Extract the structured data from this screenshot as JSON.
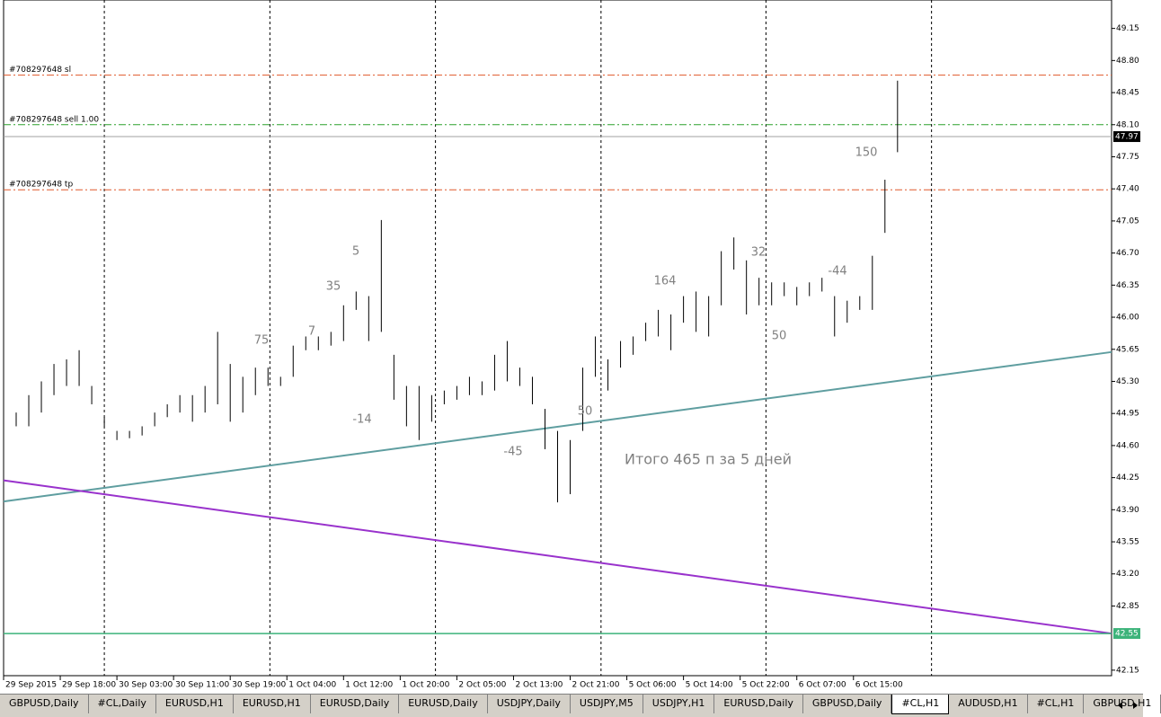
{
  "chart_data": {
    "type": "ohlc",
    "x": [
      0,
      2,
      4,
      6,
      8,
      10,
      12,
      14,
      16,
      18,
      20,
      22,
      24,
      26,
      28,
      30,
      32,
      34,
      36,
      38,
      40,
      42,
      44,
      46,
      48,
      50,
      52,
      54,
      56,
      58,
      60,
      62,
      64,
      66,
      68,
      70,
      72,
      74,
      76,
      78,
      80,
      82,
      84,
      86,
      88,
      90,
      92,
      94,
      96,
      98,
      100,
      102,
      104,
      106,
      108,
      110,
      112,
      114,
      116,
      118,
      120,
      122,
      124,
      126,
      128,
      130,
      132,
      134,
      136,
      138,
      140,
      142
    ],
    "high": [
      44.86,
      44.96,
      45.15,
      45.3,
      45.49,
      45.54,
      45.64,
      45.25,
      44.91,
      44.76,
      44.76,
      44.81,
      44.96,
      45.05,
      45.15,
      45.15,
      45.25,
      45.84,
      45.49,
      45.35,
      45.45,
      45.45,
      45.35,
      45.69,
      45.79,
      45.79,
      45.84,
      46.13,
      46.28,
      46.23,
      47.06,
      45.59,
      45.25,
      45.25,
      45.15,
      45.2,
      45.25,
      45.35,
      45.3,
      45.59,
      45.74,
      45.45,
      45.35,
      45.0,
      44.76,
      44.66,
      45.45,
      45.79,
      45.54,
      45.74,
      45.79,
      45.94,
      46.08,
      46.03,
      46.23,
      46.28,
      46.23,
      46.72,
      46.87,
      46.62,
      46.43,
      46.38,
      46.38,
      46.33,
      46.38,
      46.43,
      46.23,
      46.18,
      46.23,
      46.67,
      47.5,
      48.58
    ],
    "low": [
      44.56,
      44.81,
      44.81,
      44.96,
      45.15,
      45.25,
      45.25,
      45.05,
      44.81,
      44.66,
      44.68,
      44.71,
      44.81,
      44.91,
      44.96,
      44.86,
      44.96,
      45.05,
      44.86,
      44.96,
      45.15,
      45.25,
      45.25,
      45.35,
      45.64,
      45.64,
      45.69,
      45.74,
      46.08,
      45.74,
      45.84,
      45.1,
      44.81,
      44.66,
      44.86,
      45.05,
      45.1,
      45.15,
      45.15,
      45.2,
      45.3,
      45.25,
      45.05,
      44.56,
      43.98,
      44.07,
      44.76,
      45.35,
      45.2,
      45.45,
      45.59,
      45.74,
      45.79,
      45.64,
      45.94,
      45.84,
      45.79,
      46.13,
      46.52,
      46.03,
      46.13,
      46.13,
      46.23,
      46.13,
      46.23,
      46.28,
      45.79,
      45.94,
      46.08,
      46.08,
      46.92,
      47.8
    ],
    "xlim": [
      0,
      176
    ],
    "ylim": [
      42.09,
      49.46
    ],
    "yticks": [
      42.15,
      42.85,
      {
        "value": 43.2,
        "label": "43.20"
      },
      43.55,
      {
        "value": 43.9,
        "label": "43.90"
      },
      44.25,
      {
        "value": 44.6,
        "label": "44.60"
      },
      44.95,
      {
        "value": 45.3,
        "label": "45.30"
      },
      45.65,
      {
        "value": 46,
        "label": "46.00"
      },
      46.35,
      {
        "value": 46.7,
        "label": "46.70"
      },
      47.05,
      {
        "value": 47.4,
        "label": "47.40"
      },
      47.75,
      {
        "value": 48.1,
        "label": "48.10"
      },
      48.45,
      {
        "value": 48.8,
        "label": "48.80"
      },
      49.15
    ],
    "xticks": [
      {
        "value": 0,
        "label": "29 Sep 2015"
      },
      {
        "value": 9,
        "label": "29 Sep 18:00"
      },
      {
        "value": 18,
        "label": "30 Sep 03:00"
      },
      {
        "value": 27,
        "label": "30 Sep 11:00"
      },
      {
        "value": 36,
        "label": "30 Sep 19:00"
      },
      {
        "value": 45,
        "label": "1 Oct 04:00"
      },
      {
        "value": 54,
        "label": "1 Oct 12:00"
      },
      {
        "value": 63,
        "label": "1 Oct 20:00"
      },
      {
        "value": 72,
        "label": "2 Oct 05:00"
      },
      {
        "value": 81,
        "label": "2 Oct 13:00"
      },
      {
        "value": 90,
        "label": "2 Oct 21:00"
      },
      {
        "value": 99,
        "label": "5 Oct 06:00"
      },
      {
        "value": 108,
        "label": "5 Oct 14:00"
      },
      {
        "value": 117,
        "label": "5 Oct 22:00"
      },
      {
        "value": 126,
        "label": "6 Oct 07:00"
      },
      {
        "value": 135,
        "label": "6 Oct 15:00"
      }
    ],
    "x_grid": [
      16,
      42.3,
      68.6,
      94.9,
      121.1,
      147.4
    ],
    "color": "#000000",
    "levels": [
      {
        "label": "#708297648 sl",
        "value": 48.64,
        "color": "#e0582a"
      },
      {
        "label": "#708297648 sell 1.00",
        "value": 48.1,
        "color": "#2ca02c"
      },
      {
        "label": "#708297648 tp",
        "value": 47.39,
        "color": "#e0582a"
      }
    ],
    "current_price": 47.97,
    "support_level": {
      "value": 42.55,
      "color": "#3cb37a"
    },
    "trend_lines": [
      {
        "x": [
          0,
          176
        ],
        "values": [
          43.99,
          45.62
        ],
        "color": "#5f9ea0"
      },
      {
        "x": [
          0,
          176
        ],
        "values": [
          44.22,
          42.55
        ],
        "color": "#9932cc"
      }
    ],
    "annotations": [
      "5",
      "35",
      "7",
      "75",
      "-14",
      "-45",
      "50",
      "164",
      "32",
      "-44",
      "50",
      "150",
      "Итого 465 п за 5 дней"
    ]
  },
  "tabs": [
    {
      "label": "GBPUSD,Daily"
    },
    {
      "label": "#CL,Daily"
    },
    {
      "label": "EURUSD,H1"
    },
    {
      "label": "EURUSD,H1"
    },
    {
      "label": "EURUSD,Daily"
    },
    {
      "label": "EURUSD,Daily"
    },
    {
      "label": "USDJPY,Daily"
    },
    {
      "label": "USDJPY,M5"
    },
    {
      "label": "USDJPY,H1"
    },
    {
      "label": "EURUSD,Daily"
    },
    {
      "label": "GBPUSD,Daily"
    },
    {
      "label": "#CL,H1",
      "active": true
    },
    {
      "label": "AUDUSD,H1"
    },
    {
      "label": "#CL,H1"
    },
    {
      "label": "GBPUSD,H1"
    }
  ]
}
